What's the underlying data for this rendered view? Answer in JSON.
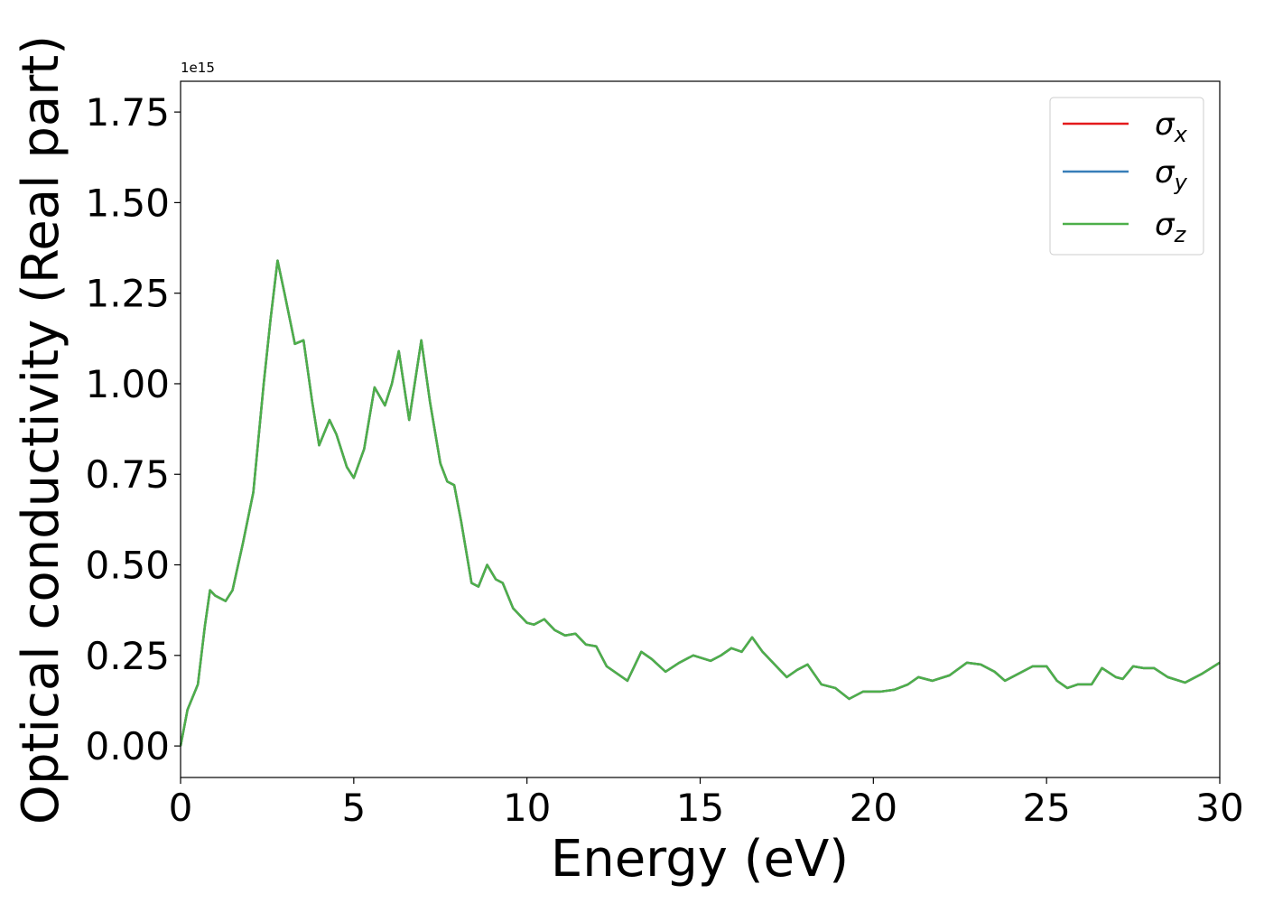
{
  "chart_data": {
    "type": "line",
    "x_label": "Energy (eV)",
    "y_label": "Optical conductivity (Real part)",
    "y_offset_text": "1e15",
    "x": [
      0,
      0.2,
      0.5,
      0.7,
      0.85,
      1.0,
      1.3,
      1.5,
      1.8,
      2.1,
      2.4,
      2.6,
      2.8,
      3.0,
      3.3,
      3.55,
      3.8,
      4.0,
      4.3,
      4.5,
      4.8,
      5.0,
      5.3,
      5.6,
      5.9,
      6.1,
      6.3,
      6.6,
      6.95,
      7.2,
      7.5,
      7.7,
      7.9,
      8.1,
      8.4,
      8.6,
      8.85,
      9.1,
      9.3,
      9.6,
      10.0,
      10.2,
      10.5,
      10.8,
      11.1,
      11.4,
      11.7,
      12.0,
      12.3,
      12.6,
      12.9,
      13.3,
      13.6,
      14.0,
      14.4,
      14.8,
      15.3,
      15.6,
      15.9,
      16.2,
      16.5,
      16.8,
      17.2,
      17.5,
      17.8,
      18.1,
      18.5,
      18.9,
      19.3,
      19.7,
      20.2,
      20.6,
      21.0,
      21.3,
      21.7,
      22.2,
      22.7,
      23.1,
      23.5,
      23.8,
      24.2,
      24.6,
      25.0,
      25.3,
      25.6,
      25.9,
      26.3,
      26.6,
      27.0,
      27.2,
      27.5,
      27.8,
      28.1,
      28.5,
      29.0,
      29.5,
      30.0
    ],
    "series": [
      {
        "name": "σx",
        "color": "#e41a1c",
        "values": [
          0,
          0.1,
          0.17,
          0.33,
          0.43,
          0.415,
          0.4,
          0.43,
          0.56,
          0.7,
          1.0,
          1.18,
          1.34,
          1.25,
          1.11,
          1.12,
          0.95,
          0.83,
          0.9,
          0.86,
          0.77,
          0.74,
          0.82,
          0.99,
          0.94,
          1.0,
          1.09,
          0.9,
          1.12,
          0.95,
          0.78,
          0.73,
          0.72,
          0.62,
          0.45,
          0.44,
          0.5,
          0.46,
          0.45,
          0.38,
          0.34,
          0.335,
          0.35,
          0.32,
          0.305,
          0.31,
          0.28,
          0.275,
          0.22,
          0.2,
          0.18,
          0.26,
          0.24,
          0.205,
          0.23,
          0.25,
          0.235,
          0.25,
          0.27,
          0.26,
          0.3,
          0.26,
          0.22,
          0.19,
          0.21,
          0.225,
          0.17,
          0.16,
          0.13,
          0.15,
          0.15,
          0.155,
          0.17,
          0.19,
          0.18,
          0.195,
          0.23,
          0.225,
          0.205,
          0.18,
          0.2,
          0.22,
          0.22,
          0.18,
          0.16,
          0.17,
          0.17,
          0.215,
          0.19,
          0.185,
          0.22,
          0.215,
          0.215,
          0.19,
          0.175,
          0.2,
          0.23
        ]
      },
      {
        "name": "σy",
        "color": "#377eb8",
        "values": [
          0,
          0.1,
          0.17,
          0.33,
          0.43,
          0.415,
          0.4,
          0.43,
          0.56,
          0.7,
          1.0,
          1.18,
          1.34,
          1.25,
          1.11,
          1.12,
          0.95,
          0.83,
          0.9,
          0.86,
          0.77,
          0.74,
          0.82,
          0.99,
          0.94,
          1.0,
          1.09,
          0.9,
          1.12,
          0.95,
          0.78,
          0.73,
          0.72,
          0.62,
          0.45,
          0.44,
          0.5,
          0.46,
          0.45,
          0.38,
          0.34,
          0.335,
          0.35,
          0.32,
          0.305,
          0.31,
          0.28,
          0.275,
          0.22,
          0.2,
          0.18,
          0.26,
          0.24,
          0.205,
          0.23,
          0.25,
          0.235,
          0.25,
          0.27,
          0.26,
          0.3,
          0.26,
          0.22,
          0.19,
          0.21,
          0.225,
          0.17,
          0.16,
          0.13,
          0.15,
          0.15,
          0.155,
          0.17,
          0.19,
          0.18,
          0.195,
          0.23,
          0.225,
          0.205,
          0.18,
          0.2,
          0.22,
          0.22,
          0.18,
          0.16,
          0.17,
          0.17,
          0.215,
          0.19,
          0.185,
          0.22,
          0.215,
          0.215,
          0.19,
          0.175,
          0.2,
          0.23
        ]
      },
      {
        "name": "σz",
        "color": "#4daf4a",
        "values": [
          0,
          0.1,
          0.17,
          0.33,
          0.43,
          0.415,
          0.4,
          0.43,
          0.56,
          0.7,
          1.0,
          1.18,
          1.34,
          1.25,
          1.11,
          1.12,
          0.95,
          0.83,
          0.9,
          0.86,
          0.77,
          0.74,
          0.82,
          0.99,
          0.94,
          1.0,
          1.09,
          0.9,
          1.12,
          0.95,
          0.78,
          0.73,
          0.72,
          0.62,
          0.45,
          0.44,
          0.5,
          0.46,
          0.45,
          0.38,
          0.34,
          0.335,
          0.35,
          0.32,
          0.305,
          0.31,
          0.28,
          0.275,
          0.22,
          0.2,
          0.18,
          0.26,
          0.24,
          0.205,
          0.23,
          0.25,
          0.235,
          0.25,
          0.27,
          0.26,
          0.3,
          0.26,
          0.22,
          0.19,
          0.21,
          0.225,
          0.17,
          0.16,
          0.13,
          0.15,
          0.15,
          0.155,
          0.17,
          0.19,
          0.18,
          0.195,
          0.23,
          0.225,
          0.205,
          0.18,
          0.2,
          0.22,
          0.22,
          0.18,
          0.16,
          0.17,
          0.17,
          0.215,
          0.19,
          0.185,
          0.22,
          0.215,
          0.215,
          0.19,
          0.175,
          0.2,
          0.23
        ]
      }
    ],
    "xlim": [
      0,
      30
    ],
    "xticks": [
      0,
      5,
      10,
      15,
      20,
      25,
      30
    ],
    "ylim": [
      -0.087,
      1.835
    ],
    "yticks": [
      {
        "value": 0,
        "label": "0.00"
      },
      0.25,
      {
        "value": 0.5,
        "label": "0.50"
      },
      0.75,
      {
        "value": 1,
        "label": "1.00"
      },
      1.25,
      {
        "value": 1.5,
        "label": "1.50"
      },
      1.75
    ],
    "grid": false,
    "legend": "upper right"
  }
}
